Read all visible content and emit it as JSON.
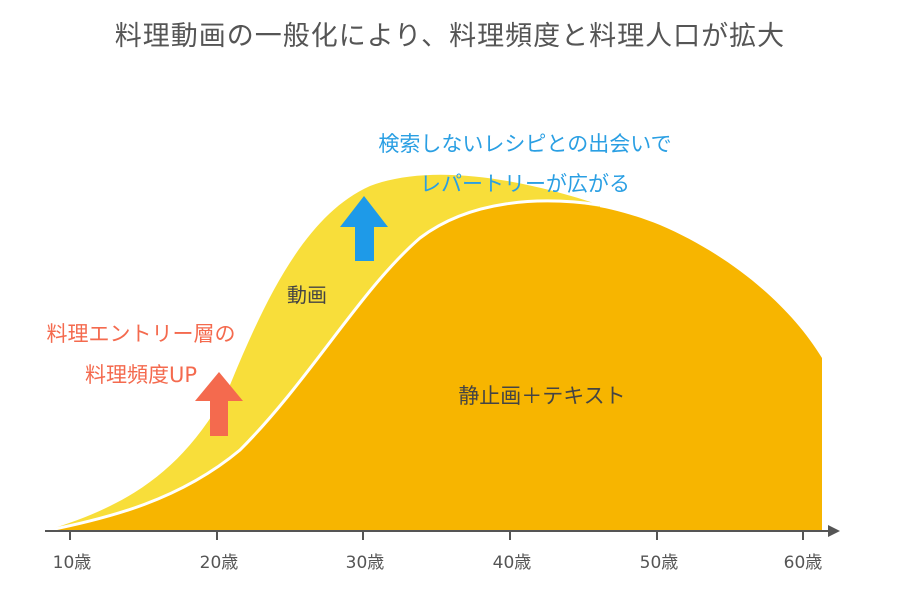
{
  "title": "料理動画の一般化により、料理頻度と料理人口が拡大",
  "labels": {
    "video_layer": "動画",
    "static_layer": "静止画＋テキスト",
    "entry_line1": "料理エントリー層の",
    "entry_line2": "料理頻度UP",
    "discover_line1": "検索しないレシピとの出会いで",
    "discover_line2": "レパートリーが広がる"
  },
  "x_axis_ticks": [
    "10歳",
    "20歳",
    "30歳",
    "40歳",
    "50歳",
    "60歳"
  ],
  "colors": {
    "video_layer": "#F8DE3A",
    "static_layer": "#F7B500",
    "entry_arrow": "#F46A4E",
    "discover_arrow": "#1E9AE8",
    "entry_text": "#F46A4E",
    "discover_text": "#2A9FE3",
    "axis": "#555555",
    "text": "#444444"
  },
  "icons": {
    "entry_arrow": "arrow-up-icon",
    "discover_arrow": "arrow-up-icon"
  }
}
